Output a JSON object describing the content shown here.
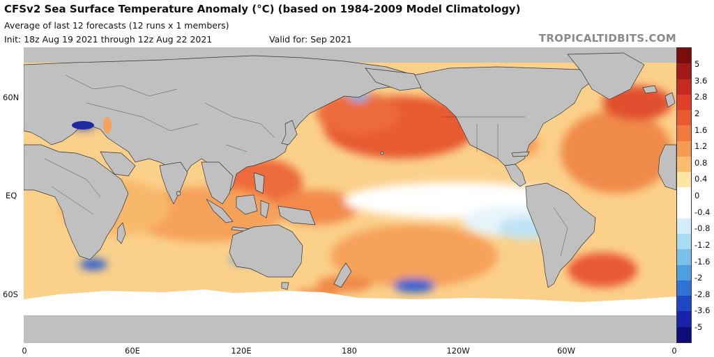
{
  "header": {
    "title": "CFSv2 Sea Surface Temperature Anomaly (°C) (based on 1984-2009 Model Climatology)",
    "subtitle_line1": "Average of last 12 forecasts (12 runs x 1 members)",
    "subtitle_line2": "Init: 18z Aug 19 2021 through 12z Aug 22 2021",
    "valid": "Valid for: Sep 2021",
    "brand": "TROPICALTIDBITS.COM"
  },
  "map": {
    "lat_labels": [
      "60N",
      "EQ",
      "60S"
    ],
    "lon_labels": [
      "0",
      "60E",
      "120E",
      "180",
      "120W",
      "60W",
      "0"
    ],
    "colors": {
      "land": "#c0c0c0",
      "warm_strong": "#e0402a",
      "warm": "#f08a4a",
      "warm_light": "#f9c57a",
      "neutral": "#ffffff",
      "cool_light": "#bfe3f5",
      "cool": "#6fb4e6",
      "cool_strong": "#2a5fd0"
    }
  },
  "colorbar": {
    "labels": [
      "5",
      "3.6",
      "2.8",
      "2",
      "1.6",
      "1.2",
      "0.8",
      "0.4",
      "0",
      "-0.4",
      "-0.8",
      "-1.2",
      "-1.6",
      "-2",
      "-2.8",
      "-3.6",
      "-5"
    ],
    "colors": [
      "#7a0c0c",
      "#a11a1a",
      "#c62b1f",
      "#de4127",
      "#ea5a31",
      "#f17b3f",
      "#f69b52",
      "#fbbd6d",
      "#fde6a3",
      "#ffffff",
      "#ffffff",
      "#d3eefa",
      "#a9dbf3",
      "#79c0ea",
      "#4f9ee0",
      "#2f74d4",
      "#1e48c2",
      "#1722a8",
      "#0c0c7a"
    ]
  }
}
